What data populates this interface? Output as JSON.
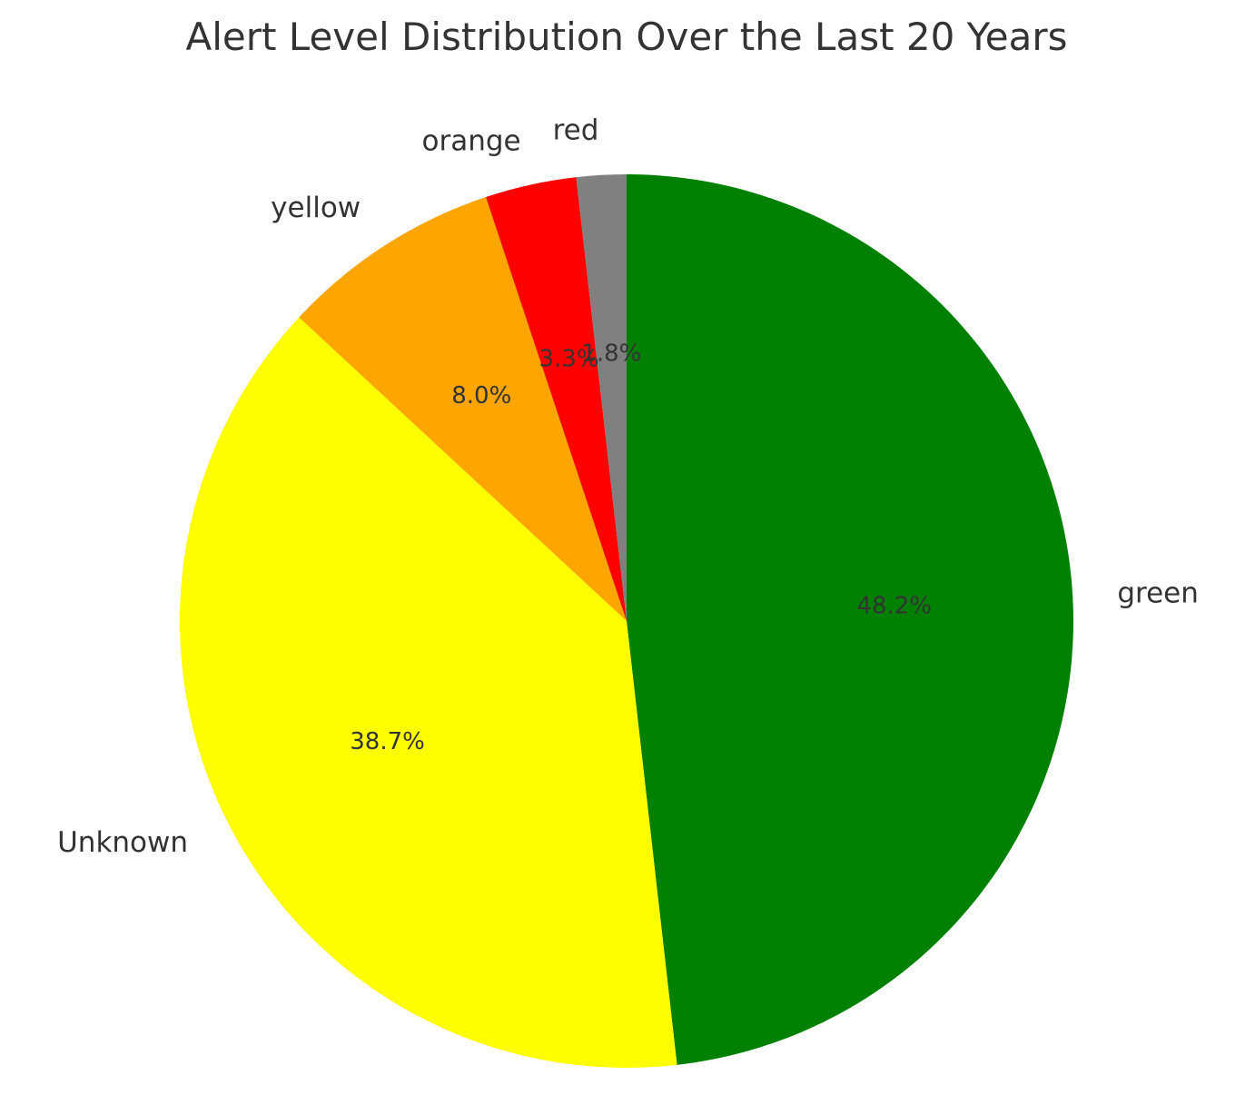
{
  "chart_data": {
    "type": "pie",
    "title": "Alert Level Distribution Over the Last 20 Years",
    "start_angle_deg": 90,
    "direction": "clockwise",
    "slices": [
      {
        "label": "green",
        "value": 48.2,
        "pct_label": "48.2%",
        "color": "#008000"
      },
      {
        "label": "Unknown",
        "value": 38.7,
        "pct_label": "38.7%",
        "color": "#ffff00"
      },
      {
        "label": "yellow",
        "value": 8.0,
        "pct_label": "8.0%",
        "color": "#ffa500"
      },
      {
        "label": "orange",
        "value": 3.3,
        "pct_label": "3.3%",
        "color": "#ff0000"
      },
      {
        "label": "red",
        "value": 1.8,
        "pct_label": "1.8%",
        "color": "#808080"
      }
    ]
  }
}
